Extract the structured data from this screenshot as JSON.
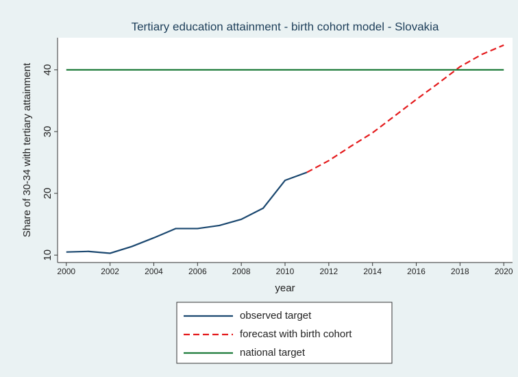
{
  "chart_data": {
    "type": "line",
    "title": "Tertiary education attainment - birth cohort model - Slovakia",
    "x_label": "year",
    "y_label": "Share of 30-34 with tertiary attainment",
    "x": [
      2000,
      2001,
      2002,
      2003,
      2004,
      2005,
      2006,
      2007,
      2008,
      2009,
      2010,
      2011,
      2012,
      2013,
      2014,
      2015,
      2016,
      2017,
      2018,
      2019,
      2020
    ],
    "series": [
      {
        "name": "observed target",
        "color": "#1a476f",
        "dash": false,
        "values": [
          10.5,
          10.6,
          10.3,
          11.4,
          12.8,
          14.3,
          14.3,
          14.8,
          15.8,
          17.6,
          22.1,
          23.4,
          null,
          null,
          null,
          null,
          null,
          null,
          null,
          null,
          null
        ]
      },
      {
        "name": "forecast with birth cohort",
        "color": "#e41a1c",
        "dash": true,
        "values": [
          null,
          null,
          null,
          null,
          null,
          null,
          null,
          null,
          null,
          null,
          null,
          23.4,
          25.3,
          27.6,
          29.8,
          32.5,
          35.2,
          37.8,
          40.5,
          42.5,
          44.0
        ]
      },
      {
        "name": "national target",
        "color": "#1e7b3a",
        "dash": false,
        "values": [
          40,
          40,
          40,
          40,
          40,
          40,
          40,
          40,
          40,
          40,
          40,
          40,
          40,
          40,
          40,
          40,
          40,
          40,
          40,
          40,
          40
        ]
      }
    ],
    "xlim": [
      1999.6,
      2020.4
    ],
    "xticks": [
      2000,
      2002,
      2004,
      2006,
      2008,
      2010,
      2012,
      2014,
      2016,
      2018,
      2020
    ],
    "ylim": [
      8.8,
      45.2
    ],
    "yticks": [
      10,
      20,
      30,
      40
    ],
    "grid": false,
    "legend": "bottom"
  }
}
